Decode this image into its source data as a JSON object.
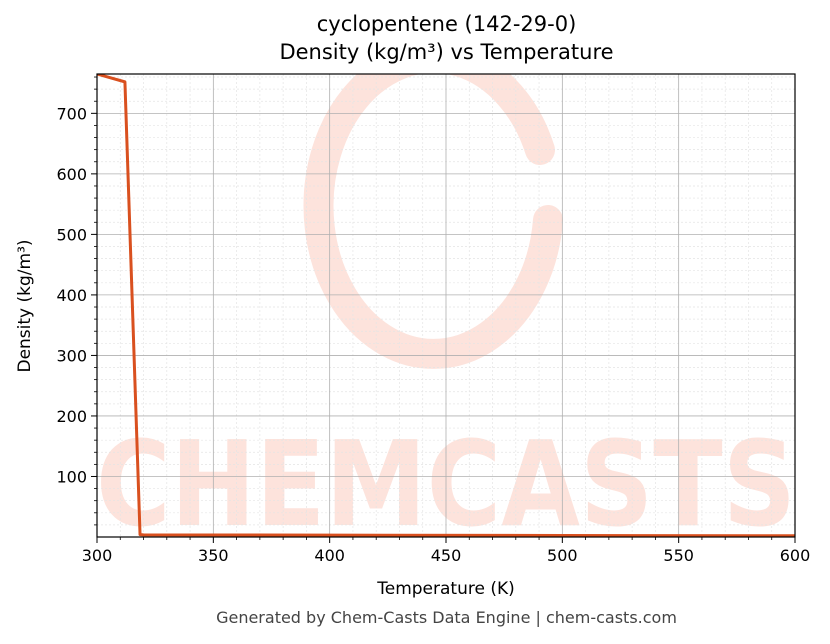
{
  "chart_data": {
    "type": "line",
    "title_line1": "cyclopentene (142-29-0)",
    "title_line2": "Density (kg/m³) vs Temperature",
    "xlabel": "Temperature (K)",
    "ylabel": "Density (kg/m³)",
    "xlim": [
      300,
      600
    ],
    "ylim": [
      0,
      765
    ],
    "xticks": [
      300,
      350,
      400,
      450,
      500,
      550,
      600
    ],
    "yticks": [
      100,
      200,
      300,
      400,
      500,
      600,
      700
    ],
    "grid": true,
    "series": [
      {
        "color": "#d9501f",
        "x": [
          300,
          312,
          318.5,
          320,
          400,
          500,
          600
        ],
        "y": [
          765,
          752,
          4,
          3.5,
          3.0,
          2.5,
          2.0
        ]
      }
    ]
  },
  "watermark": {
    "text": "CHEMCASTS",
    "color": "#fde3dc"
  },
  "footer": "Generated by Chem-Casts Data Engine | chem-casts.com"
}
